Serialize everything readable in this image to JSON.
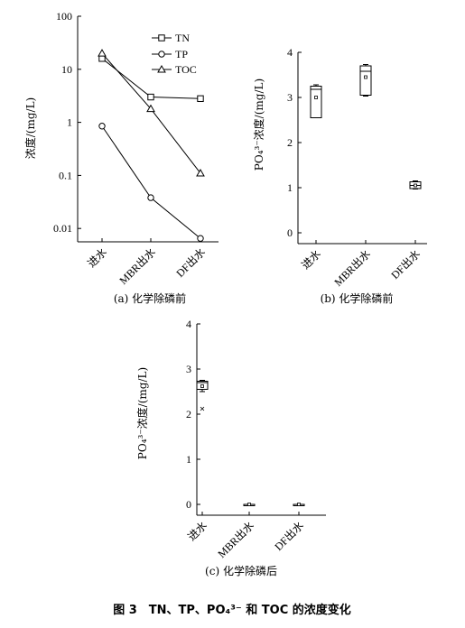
{
  "figure": {
    "title": "图 3　TN、TP、PO₄³⁻ 和 TOC 的浓度变化"
  },
  "chart_data": [
    {
      "type": "line",
      "panel": "a",
      "caption": "(a) 化学除磷前",
      "ylabel": "浓度/(mg/L)",
      "yscale": "log",
      "ylim": [
        0.005,
        100
      ],
      "yticks": [
        "100",
        "10",
        "1",
        "0.1",
        "0.01"
      ],
      "categories": [
        "进水",
        "MBR出水",
        "DF出水"
      ],
      "legend_position": "top-right",
      "series": [
        {
          "name": "TN",
          "marker": "square",
          "values": [
            16,
            3.0,
            2.8
          ]
        },
        {
          "name": "TP",
          "marker": "circle",
          "values": [
            0.85,
            0.038,
            0.0065
          ]
        },
        {
          "name": "TOC",
          "marker": "triangle",
          "values": [
            20,
            1.8,
            0.11
          ]
        }
      ]
    },
    {
      "type": "box",
      "panel": "b",
      "caption": "(b) 化学除磷前",
      "ylabel": "PO₄³⁻浓度/(mg/L)",
      "ylim": [
        0,
        4
      ],
      "yticks": [
        "0",
        "1",
        "2",
        "3",
        "4"
      ],
      "categories": [
        "进水",
        "MBR出水",
        "DF出水"
      ],
      "boxes": [
        {
          "min": 2.55,
          "q1": 2.55,
          "median": 3.18,
          "q3": 3.25,
          "max": 3.28,
          "mean": 3.0
        },
        {
          "min": 3.03,
          "q1": 3.05,
          "median": 3.58,
          "q3": 3.7,
          "max": 3.73,
          "mean": 3.45
        },
        {
          "min": 0.97,
          "q1": 0.98,
          "median": 1.05,
          "q3": 1.13,
          "max": 1.15,
          "mean": 1.05
        }
      ]
    },
    {
      "type": "box",
      "panel": "c",
      "caption": "(c) 化学除磷后",
      "ylabel": "PO₄³⁻浓度/(mg/L)",
      "ylim": [
        0,
        4
      ],
      "yticks": [
        "0",
        "1",
        "2",
        "3",
        "4"
      ],
      "categories": [
        "进水",
        "MBR出水",
        "DF出水"
      ],
      "boxes": [
        {
          "min": 2.5,
          "q1": 2.55,
          "median": 2.7,
          "q3": 2.73,
          "max": 2.75,
          "mean": 2.62,
          "outliers": [
            2.12
          ]
        },
        {
          "min": 0.0,
          "q1": 0.0,
          "median": 0.0,
          "q3": 0.0,
          "max": 0.0,
          "mean": 0.0
        },
        {
          "min": 0.0,
          "q1": 0.0,
          "median": 0.0,
          "q3": 0.0,
          "max": 0.0,
          "mean": 0.0
        }
      ]
    }
  ]
}
